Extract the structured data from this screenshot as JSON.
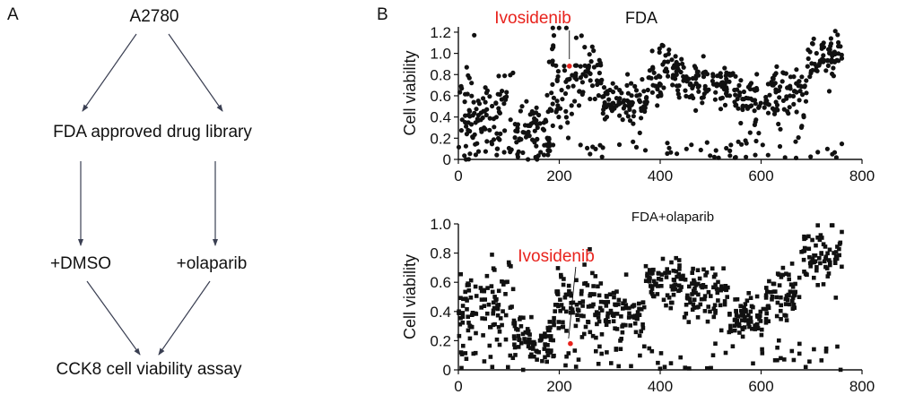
{
  "panel_a": {
    "letter": "A",
    "nodes": {
      "root": "A2780",
      "library": "FDA approved drug library",
      "dmso": "+DMSO",
      "olaparib": "+olaparib",
      "assay": "CCK8 cell viability assay"
    }
  },
  "panel_b": {
    "letter": "B"
  },
  "colors": {
    "point": "#111111",
    "highlight": "#e8231d",
    "arrow": "#3a3f52"
  },
  "chart_data": [
    {
      "type": "scatter",
      "title": "FDA",
      "ylabel": "Cell viability",
      "xlim": [
        0,
        800
      ],
      "ylim": [
        0,
        1.25
      ],
      "xticks": [
        "0",
        "200",
        "400",
        "600",
        "800"
      ],
      "yticks": [
        "0",
        "0.2",
        "0.4",
        "0.6",
        "0.8",
        "1.0",
        "1.2"
      ],
      "marker": "circle",
      "highlight": {
        "label": "Ivosidenib",
        "x": 220,
        "y": 0.88
      },
      "segments": [
        {
          "x": [
            0,
            110
          ],
          "mean": 0.42,
          "sd": 0.2
        },
        {
          "x": [
            110,
            180
          ],
          "mean": 0.24,
          "sd": 0.13
        },
        {
          "x": [
            180,
            230
          ],
          "mean": 0.6,
          "sd": 0.25
        },
        {
          "x": [
            230,
            285
          ],
          "mean": 0.8,
          "sd": 0.15
        },
        {
          "x": [
            285,
            375
          ],
          "mean": 0.55,
          "sd": 0.1
        },
        {
          "x": [
            375,
            450
          ],
          "mean": 0.82,
          "sd": 0.12
        },
        {
          "x": [
            450,
            545
          ],
          "mean": 0.72,
          "sd": 0.1
        },
        {
          "x": [
            545,
            690
          ],
          "mean": 0.6,
          "sd": 0.12
        },
        {
          "x": [
            690,
            760
          ],
          "mean": 0.98,
          "sd": 0.12
        }
      ],
      "n_points": 760
    },
    {
      "type": "scatter",
      "title": "FDA+olaparib",
      "ylabel": "Cell viability",
      "xlim": [
        0,
        800
      ],
      "ylim": [
        0,
        1.0
      ],
      "xticks": [
        "0",
        "200",
        "400",
        "600",
        "800"
      ],
      "yticks": [
        "0",
        "0.2",
        "0.4",
        "0.6",
        "0.8",
        "1.0"
      ],
      "marker": "square",
      "highlight": {
        "label": "Ivosidenib",
        "x": 222,
        "y": 0.18
      },
      "segments": [
        {
          "x": [
            0,
            110
          ],
          "mean": 0.42,
          "sd": 0.12
        },
        {
          "x": [
            110,
            190
          ],
          "mean": 0.22,
          "sd": 0.08
        },
        {
          "x": [
            190,
            290
          ],
          "mean": 0.45,
          "sd": 0.12
        },
        {
          "x": [
            290,
            370
          ],
          "mean": 0.38,
          "sd": 0.08
        },
        {
          "x": [
            370,
            450
          ],
          "mean": 0.6,
          "sd": 0.08
        },
        {
          "x": [
            450,
            535
          ],
          "mean": 0.54,
          "sd": 0.09
        },
        {
          "x": [
            535,
            610
          ],
          "mean": 0.34,
          "sd": 0.07
        },
        {
          "x": [
            610,
            680
          ],
          "mean": 0.5,
          "sd": 0.1
        },
        {
          "x": [
            680,
            760
          ],
          "mean": 0.78,
          "sd": 0.09
        }
      ],
      "n_points": 760
    }
  ]
}
